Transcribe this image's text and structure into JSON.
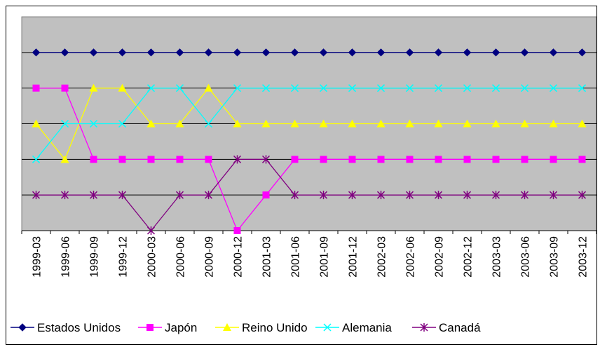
{
  "chart_data": {
    "type": "line",
    "title": "",
    "xlabel": "",
    "ylabel": "",
    "categories": [
      "1999-03",
      "1999-06",
      "1999-09",
      "1999-12",
      "2000-03",
      "2000-06",
      "2000-09",
      "2000-12",
      "2001-03",
      "2001-06",
      "2001-09",
      "2001-12",
      "2002-03",
      "2002-06",
      "2002-09",
      "2002-12",
      "2003-03",
      "2003-06",
      "2003-09",
      "2003-12"
    ],
    "ylim": [
      0,
      6
    ],
    "y_axis_labels_shown": false,
    "grid": true,
    "plot_background": "#c0c0c0",
    "legend": "bottom",
    "series": [
      {
        "name": "Estados Unidos",
        "color": "#000080",
        "marker": "diamond",
        "values": [
          5,
          5,
          5,
          5,
          5,
          5,
          5,
          5,
          5,
          5,
          5,
          5,
          5,
          5,
          5,
          5,
          5,
          5,
          5,
          5
        ]
      },
      {
        "name": "Japón",
        "color": "#ff00ff",
        "marker": "square",
        "values": [
          4,
          4,
          2,
          2,
          2,
          2,
          2,
          0,
          1,
          2,
          2,
          2,
          2,
          2,
          2,
          2,
          2,
          2,
          2,
          2
        ]
      },
      {
        "name": "Reino Unido",
        "color": "#ffff00",
        "marker": "triangle",
        "values": [
          3,
          2,
          4,
          4,
          3,
          3,
          4,
          3,
          3,
          3,
          3,
          3,
          3,
          3,
          3,
          3,
          3,
          3,
          3,
          3
        ]
      },
      {
        "name": "Alemania",
        "color": "#00ffff",
        "marker": "x",
        "values": [
          2,
          3,
          3,
          3,
          4,
          4,
          3,
          4,
          4,
          4,
          4,
          4,
          4,
          4,
          4,
          4,
          4,
          4,
          4,
          4
        ]
      },
      {
        "name": "Canadá",
        "color": "#800080",
        "marker": "star",
        "values": [
          1,
          1,
          1,
          1,
          0,
          1,
          1,
          2,
          2,
          1,
          1,
          1,
          1,
          1,
          1,
          1,
          1,
          1,
          1,
          1
        ]
      }
    ]
  }
}
